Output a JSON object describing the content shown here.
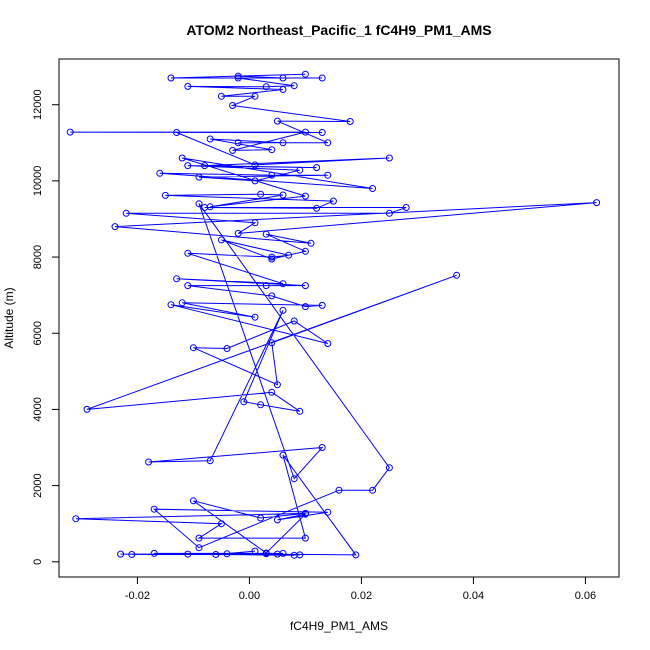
{
  "chart_data": {
    "type": "scatter",
    "title": "ATOM2 Northeast_Pacific_1 fC4H9_PM1_AMS",
    "xlabel": "fC4H9_PM1_AMS",
    "ylabel": "Altitude (m)",
    "xlim": [
      -0.034,
      0.066
    ],
    "ylim": [
      -400,
      13200
    ],
    "xticks": [
      -0.02,
      0.0,
      0.02,
      0.04,
      0.06
    ],
    "xtick_labels": [
      "-0.02",
      "0.00",
      "0.02",
      "0.04",
      "0.06"
    ],
    "yticks": [
      0,
      2000,
      4000,
      6000,
      8000,
      10000,
      12000
    ],
    "ytick_labels": [
      "0",
      "2000",
      "4000",
      "6000",
      "8000",
      "10000",
      "12000"
    ],
    "grid": false,
    "connected": true,
    "marker": "open-circle",
    "color": "#0000ff",
    "points": [
      {
        "x": 0.005,
        "y": 200
      },
      {
        "x": 0.009,
        "y": 180
      },
      {
        "x": -0.023,
        "y": 200
      },
      {
        "x": 0.003,
        "y": 210
      },
      {
        "x": -0.021,
        "y": 190
      },
      {
        "x": 0.006,
        "y": 220
      },
      {
        "x": -0.017,
        "y": 220
      },
      {
        "x": 0.008,
        "y": 170
      },
      {
        "x": -0.011,
        "y": 200
      },
      {
        "x": -0.006,
        "y": 190
      },
      {
        "x": 0.001,
        "y": 280
      },
      {
        "x": -0.004,
        "y": 210
      },
      {
        "x": 0.019,
        "y": 180
      },
      {
        "x": 0.006,
        "y": 2800
      },
      {
        "x": 0.01,
        "y": 620
      },
      {
        "x": -0.009,
        "y": 620
      },
      {
        "x": -0.005,
        "y": 1000
      },
      {
        "x": -0.031,
        "y": 1130
      },
      {
        "x": 0.01,
        "y": 1270
      },
      {
        "x": 0.002,
        "y": 1150
      },
      {
        "x": -0.01,
        "y": 1600
      },
      {
        "x": 0.003,
        "y": 230
      },
      {
        "x": 0.01,
        "y": 1250
      },
      {
        "x": 0.005,
        "y": 1100
      },
      {
        "x": 0.014,
        "y": 1300
      },
      {
        "x": -0.017,
        "y": 1380
      },
      {
        "x": -0.009,
        "y": 370
      },
      {
        "x": 0.016,
        "y": 1880
      },
      {
        "x": 0.022,
        "y": 1880
      },
      {
        "x": 0.025,
        "y": 2470
      },
      {
        "x": -0.009,
        "y": 9400
      },
      {
        "x": 0.008,
        "y": 2180
      },
      {
        "x": 0.013,
        "y": 3000
      },
      {
        "x": -0.018,
        "y": 2620
      },
      {
        "x": -0.007,
        "y": 2650
      },
      {
        "x": 0.006,
        "y": 6600
      },
      {
        "x": -0.001,
        "y": 4200
      },
      {
        "x": 0.002,
        "y": 4120
      },
      {
        "x": 0.009,
        "y": 3950
      },
      {
        "x": 0.004,
        "y": 4450
      },
      {
        "x": -0.029,
        "y": 4000
      },
      {
        "x": 0.037,
        "y": 7520
      },
      {
        "x": 0.004,
        "y": 5750
      },
      {
        "x": 0.005,
        "y": 4650
      },
      {
        "x": -0.01,
        "y": 5620
      },
      {
        "x": -0.004,
        "y": 5600
      },
      {
        "x": 0.008,
        "y": 6320
      },
      {
        "x": 0.014,
        "y": 5730
      },
      {
        "x": -0.014,
        "y": 6750
      },
      {
        "x": 0.001,
        "y": 6420
      },
      {
        "x": -0.012,
        "y": 6800
      },
      {
        "x": 0.013,
        "y": 6730
      },
      {
        "x": 0.01,
        "y": 6700
      },
      {
        "x": 0.004,
        "y": 6980
      },
      {
        "x": -0.011,
        "y": 7250
      },
      {
        "x": 0.003,
        "y": 7250
      },
      {
        "x": 0.01,
        "y": 7250
      },
      {
        "x": -0.013,
        "y": 7430
      },
      {
        "x": 0.006,
        "y": 7300
      },
      {
        "x": -0.011,
        "y": 8100
      },
      {
        "x": 0.004,
        "y": 8000
      },
      {
        "x": 0.007,
        "y": 8050
      },
      {
        "x": -0.005,
        "y": 8450
      },
      {
        "x": 0.004,
        "y": 7950
      },
      {
        "x": 0.01,
        "y": 8150
      },
      {
        "x": 0.003,
        "y": 8600
      },
      {
        "x": 0.011,
        "y": 8360
      },
      {
        "x": -0.024,
        "y": 8800
      },
      {
        "x": 0.062,
        "y": 9430
      },
      {
        "x": -0.002,
        "y": 8620
      },
      {
        "x": 0.001,
        "y": 8900
      },
      {
        "x": -0.022,
        "y": 9150
      },
      {
        "x": 0.025,
        "y": 9150
      },
      {
        "x": 0.028,
        "y": 9300
      },
      {
        "x": -0.008,
        "y": 9300
      },
      {
        "x": 0.012,
        "y": 9280
      },
      {
        "x": 0.015,
        "y": 9470
      },
      {
        "x": -0.015,
        "y": 9620
      },
      {
        "x": 0.002,
        "y": 9650
      },
      {
        "x": 0.006,
        "y": 9630
      },
      {
        "x": -0.007,
        "y": 9320
      },
      {
        "x": 0.01,
        "y": 9600
      },
      {
        "x": -0.012,
        "y": 10600
      },
      {
        "x": 0.022,
        "y": 9800
      },
      {
        "x": -0.016,
        "y": 10200
      },
      {
        "x": 0.004,
        "y": 10150
      },
      {
        "x": 0.014,
        "y": 10150
      },
      {
        "x": -0.009,
        "y": 10100
      },
      {
        "x": 0.001,
        "y": 10000
      },
      {
        "x": 0.009,
        "y": 10280
      },
      {
        "x": -0.011,
        "y": 10400
      },
      {
        "x": 0.012,
        "y": 10350
      },
      {
        "x": -0.008,
        "y": 10400
      },
      {
        "x": 0.025,
        "y": 10600
      },
      {
        "x": 0.001,
        "y": 10420
      },
      {
        "x": -0.013,
        "y": 11270
      },
      {
        "x": 0.013,
        "y": 11270
      },
      {
        "x": -0.032,
        "y": 11280
      },
      {
        "x": 0.01,
        "y": 11280
      },
      {
        "x": -0.003,
        "y": 10800
      },
      {
        "x": 0.004,
        "y": 10820
      },
      {
        "x": -0.007,
        "y": 11100
      },
      {
        "x": 0.006,
        "y": 11000
      },
      {
        "x": -0.002,
        "y": 11000
      },
      {
        "x": 0.014,
        "y": 11000
      },
      {
        "x": 0.005,
        "y": 11570
      },
      {
        "x": 0.018,
        "y": 11560
      },
      {
        "x": -0.003,
        "y": 11980
      },
      {
        "x": 0.001,
        "y": 12220
      },
      {
        "x": -0.005,
        "y": 12220
      },
      {
        "x": 0.006,
        "y": 12400
      },
      {
        "x": -0.011,
        "y": 12480
      },
      {
        "x": 0.003,
        "y": 12470
      },
      {
        "x": 0.008,
        "y": 12500
      },
      {
        "x": -0.002,
        "y": 12700
      },
      {
        "x": 0.013,
        "y": 12700
      },
      {
        "x": -0.014,
        "y": 12700
      },
      {
        "x": 0.01,
        "y": 12800
      },
      {
        "x": -0.002,
        "y": 12750
      },
      {
        "x": 0.006,
        "y": 12700
      }
    ]
  }
}
